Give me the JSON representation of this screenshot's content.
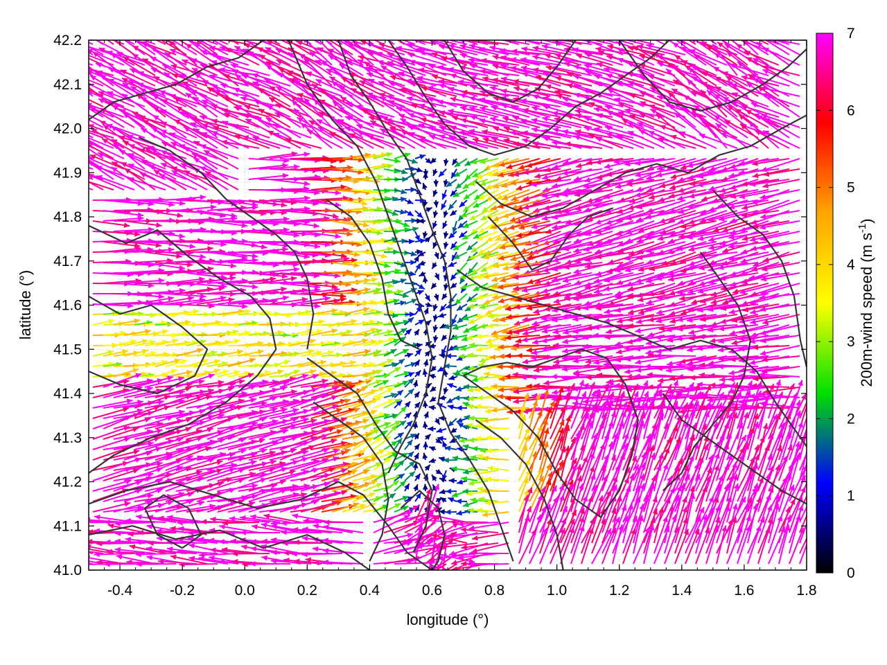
{
  "chart_data": {
    "type": "vector-field",
    "xlabel": "longitude (°)",
    "ylabel": "latitude (°)",
    "xlim": [
      -0.5,
      1.8
    ],
    "ylim": [
      41.0,
      42.2
    ],
    "x_ticks": [
      -0.4,
      -0.2,
      0.0,
      0.2,
      0.4,
      0.6,
      0.8,
      1.0,
      1.2,
      1.4,
      1.6,
      1.8
    ],
    "x_tick_labels": [
      "-0.4",
      "-0.2",
      "0.0",
      "0.2",
      "0.4",
      "0.6",
      "0.8",
      "1.0",
      "1.2",
      "1.4",
      "1.6",
      "1.8"
    ],
    "y_ticks": [
      41.0,
      41.1,
      41.2,
      41.3,
      41.4,
      41.5,
      41.6,
      41.7,
      41.8,
      41.9,
      42.0,
      42.1,
      42.2
    ],
    "y_tick_labels": [
      "41.0",
      "41.1",
      "41.2",
      "41.3",
      "41.4",
      "41.5",
      "41.6",
      "41.7",
      "41.8",
      "41.9",
      "42.0",
      "42.1",
      "42.2"
    ],
    "grid": "dotted",
    "colorbar": {
      "label": "200m-wind speed (m s",
      "label_superscript": "-1",
      "label_close": ")",
      "range": [
        0,
        7
      ],
      "ticks": [
        0,
        1,
        2,
        3,
        4,
        5,
        6,
        7
      ],
      "tick_labels": [
        "0",
        "1",
        "2",
        "3",
        "4",
        "5",
        "6",
        "7"
      ],
      "colormap": [
        "#000000",
        "#0000ff",
        "#00e000",
        "#ffff00",
        "#ffa500",
        "#ff0000",
        "#ff00ff"
      ]
    },
    "contours": [
      {
        "name": "",
        "points": [
          [
            -0.5,
            41.78
          ],
          [
            -0.38,
            41.74
          ],
          [
            -0.28,
            41.77
          ],
          [
            -0.18,
            41.71
          ],
          [
            -0.08,
            41.66
          ],
          [
            0.02,
            41.62
          ],
          [
            0.08,
            41.57
          ],
          [
            0.1,
            41.5
          ],
          [
            0.04,
            41.44
          ],
          [
            -0.06,
            41.38
          ],
          [
            -0.18,
            41.33
          ],
          [
            -0.3,
            41.3
          ],
          [
            -0.42,
            41.26
          ],
          [
            -0.5,
            41.22
          ]
        ]
      },
      {
        "name": "",
        "points": [
          [
            -0.5,
            41.62
          ],
          [
            -0.4,
            41.58
          ],
          [
            -0.3,
            41.6
          ],
          [
            -0.2,
            41.55
          ],
          [
            -0.12,
            41.5
          ],
          [
            -0.16,
            41.44
          ],
          [
            -0.28,
            41.4
          ],
          [
            -0.4,
            41.42
          ],
          [
            -0.5,
            41.45
          ]
        ]
      },
      {
        "name": "",
        "points": [
          [
            -0.5,
            41.15
          ],
          [
            -0.38,
            41.18
          ],
          [
            -0.24,
            41.2
          ],
          [
            -0.1,
            41.17
          ],
          [
            0.04,
            41.14
          ],
          [
            0.18,
            41.16
          ],
          [
            0.3,
            41.2
          ],
          [
            0.38,
            41.17
          ],
          [
            0.46,
            41.1
          ],
          [
            0.52,
            41.04
          ],
          [
            0.6,
            41.0
          ]
        ]
      },
      {
        "name": "",
        "points": [
          [
            -0.5,
            41.08
          ],
          [
            -0.36,
            41.1
          ],
          [
            -0.22,
            41.07
          ],
          [
            -0.08,
            41.09
          ],
          [
            0.06,
            41.05
          ],
          [
            0.2,
            41.08
          ],
          [
            0.32,
            41.04
          ],
          [
            0.4,
            41.0
          ]
        ]
      },
      {
        "name": "",
        "points": [
          [
            0.14,
            42.2
          ],
          [
            0.2,
            42.1
          ],
          [
            0.28,
            42.02
          ],
          [
            0.36,
            41.96
          ],
          [
            0.42,
            41.88
          ],
          [
            0.46,
            41.8
          ],
          [
            0.5,
            41.72
          ],
          [
            0.54,
            41.64
          ],
          [
            0.58,
            41.56
          ],
          [
            0.6,
            41.48
          ],
          [
            0.58,
            41.4
          ],
          [
            0.54,
            41.33
          ],
          [
            0.5,
            41.28
          ],
          [
            0.46,
            41.22
          ]
        ]
      },
      {
        "name": "",
        "points": [
          [
            0.3,
            42.2
          ],
          [
            0.34,
            42.12
          ],
          [
            0.4,
            42.06
          ],
          [
            0.46,
            41.99
          ],
          [
            0.52,
            41.93
          ],
          [
            0.56,
            41.85
          ],
          [
            0.6,
            41.77
          ],
          [
            0.64,
            41.7
          ],
          [
            0.66,
            41.62
          ],
          [
            0.66,
            41.54
          ],
          [
            0.64,
            41.46
          ],
          [
            0.62,
            41.38
          ],
          [
            0.66,
            41.31
          ],
          [
            0.72,
            41.25
          ],
          [
            0.78,
            41.18
          ],
          [
            0.82,
            41.1
          ],
          [
            0.86,
            41.02
          ]
        ]
      },
      {
        "name": "",
        "points": [
          [
            0.46,
            42.2
          ],
          [
            0.52,
            42.14
          ],
          [
            0.58,
            42.07
          ],
          [
            0.64,
            42.01
          ],
          [
            0.72,
            41.96
          ],
          [
            0.8,
            41.94
          ],
          [
            0.9,
            41.96
          ],
          [
            0.98,
            42.0
          ],
          [
            1.06,
            42.05
          ],
          [
            1.14,
            42.08
          ],
          [
            1.22,
            42.12
          ],
          [
            1.3,
            42.16
          ],
          [
            1.36,
            42.2
          ]
        ]
      },
      {
        "name": "",
        "points": [
          [
            0.64,
            42.2
          ],
          [
            0.7,
            42.13
          ],
          [
            0.78,
            42.08
          ],
          [
            0.86,
            42.06
          ],
          [
            0.94,
            42.09
          ],
          [
            1.0,
            42.14
          ],
          [
            1.06,
            42.2
          ]
        ]
      },
      {
        "name": "",
        "points": [
          [
            0.74,
            41.88
          ],
          [
            0.82,
            41.83
          ],
          [
            0.92,
            41.8
          ],
          [
            1.02,
            41.82
          ],
          [
            1.12,
            41.86
          ],
          [
            1.22,
            41.9
          ],
          [
            1.32,
            41.92
          ],
          [
            1.42,
            41.9
          ],
          [
            1.52,
            41.94
          ],
          [
            1.62,
            41.96
          ],
          [
            1.72,
            42.0
          ],
          [
            1.8,
            42.03
          ]
        ]
      },
      {
        "name": "",
        "points": [
          [
            0.68,
            41.68
          ],
          [
            0.76,
            41.64
          ],
          [
            0.86,
            41.62
          ],
          [
            0.96,
            41.6
          ],
          [
            1.06,
            41.58
          ],
          [
            1.16,
            41.56
          ],
          [
            1.26,
            41.53
          ],
          [
            1.36,
            41.5
          ],
          [
            1.46,
            41.52
          ],
          [
            1.56,
            41.5
          ],
          [
            1.64,
            41.45
          ],
          [
            1.7,
            41.38
          ],
          [
            1.76,
            41.32
          ],
          [
            1.8,
            41.28
          ]
        ]
      },
      {
        "name": "",
        "points": [
          [
            1.46,
            41.72
          ],
          [
            1.52,
            41.66
          ],
          [
            1.58,
            41.6
          ],
          [
            1.62,
            41.52
          ],
          [
            1.6,
            41.44
          ],
          [
            1.56,
            41.38
          ],
          [
            1.5,
            41.33
          ],
          [
            1.44,
            41.28
          ],
          [
            1.4,
            41.22
          ],
          [
            1.34,
            41.18
          ]
        ]
      },
      {
        "name": "",
        "points": [
          [
            0.7,
            41.44
          ],
          [
            0.78,
            41.4
          ],
          [
            0.86,
            41.36
          ],
          [
            0.94,
            41.3
          ],
          [
            1.0,
            41.22
          ],
          [
            1.06,
            41.16
          ],
          [
            1.14,
            41.12
          ],
          [
            1.2,
            41.18
          ],
          [
            1.24,
            41.26
          ],
          [
            1.26,
            41.34
          ],
          [
            1.22,
            41.42
          ],
          [
            1.16,
            41.48
          ],
          [
            1.08,
            41.5
          ],
          [
            1.0,
            41.48
          ],
          [
            0.92,
            41.46
          ],
          [
            0.84,
            41.47
          ],
          [
            0.76,
            41.46
          ],
          [
            0.7,
            41.44
          ]
        ]
      },
      {
        "name": "",
        "points": [
          [
            0.74,
            41.34
          ],
          [
            0.82,
            41.3
          ],
          [
            0.9,
            41.24
          ],
          [
            0.96,
            41.16
          ],
          [
            1.0,
            41.08
          ],
          [
            1.02,
            41.0
          ]
        ]
      },
      {
        "name": "",
        "points": [
          [
            0.22,
            41.38
          ],
          [
            0.3,
            41.34
          ],
          [
            0.38,
            41.3
          ],
          [
            0.44,
            41.24
          ],
          [
            0.46,
            41.16
          ],
          [
            0.44,
            41.08
          ],
          [
            0.4,
            41.02
          ]
        ]
      },
      {
        "name": "",
        "points": [
          [
            0.2,
            41.48
          ],
          [
            0.28,
            41.44
          ],
          [
            0.36,
            41.4
          ],
          [
            0.42,
            41.33
          ],
          [
            0.48,
            41.27
          ],
          [
            0.56,
            41.24
          ],
          [
            0.6,
            41.18
          ],
          [
            0.58,
            41.1
          ],
          [
            0.54,
            41.04
          ]
        ]
      },
      {
        "name": "",
        "points": [
          [
            -0.2,
            41.05
          ],
          [
            -0.28,
            41.08
          ],
          [
            -0.32,
            41.14
          ],
          [
            -0.26,
            41.17
          ],
          [
            -0.18,
            41.14
          ],
          [
            -0.14,
            41.08
          ],
          [
            -0.2,
            41.05
          ]
        ]
      },
      {
        "name": "",
        "points": [
          [
            -0.34,
            41.98
          ],
          [
            -0.24,
            41.95
          ],
          [
            -0.14,
            41.9
          ],
          [
            -0.06,
            41.84
          ],
          [
            0.02,
            41.8
          ],
          [
            0.1,
            41.76
          ],
          [
            0.16,
            41.72
          ],
          [
            0.2,
            41.66
          ],
          [
            0.22,
            41.58
          ],
          [
            0.2,
            41.5
          ]
        ]
      },
      {
        "name": "",
        "points": [
          [
            -0.5,
            42.02
          ],
          [
            -0.42,
            42.06
          ],
          [
            -0.32,
            42.08
          ],
          [
            -0.22,
            42.1
          ],
          [
            -0.12,
            42.14
          ],
          [
            -0.02,
            42.16
          ],
          [
            0.06,
            42.2
          ]
        ]
      },
      {
        "name": "",
        "points": [
          [
            1.2,
            42.2
          ],
          [
            1.28,
            42.12
          ],
          [
            1.36,
            42.06
          ],
          [
            1.46,
            42.04
          ],
          [
            1.56,
            42.06
          ],
          [
            1.66,
            42.1
          ],
          [
            1.74,
            42.14
          ],
          [
            1.8,
            42.18
          ]
        ]
      },
      {
        "name": "",
        "points": [
          [
            1.5,
            41.86
          ],
          [
            1.58,
            41.8
          ],
          [
            1.66,
            41.76
          ],
          [
            1.72,
            41.7
          ],
          [
            1.76,
            41.62
          ],
          [
            1.78,
            41.52
          ],
          [
            1.8,
            41.46
          ]
        ]
      },
      {
        "name": "",
        "points": [
          [
            1.34,
            41.4
          ],
          [
            1.4,
            41.34
          ],
          [
            1.48,
            41.3
          ],
          [
            1.56,
            41.26
          ],
          [
            1.64,
            41.22
          ],
          [
            1.72,
            41.18
          ],
          [
            1.8,
            41.15
          ]
        ]
      },
      {
        "name": "",
        "points": [
          [
            0.78,
            41.8
          ],
          [
            0.86,
            41.74
          ],
          [
            0.92,
            41.68
          ],
          [
            0.98,
            41.7
          ],
          [
            1.04,
            41.76
          ],
          [
            1.1,
            41.8
          ],
          [
            1.18,
            41.82
          ]
        ]
      },
      {
        "name": "",
        "points": [
          [
            0.26,
            41.84
          ],
          [
            0.34,
            41.8
          ],
          [
            0.4,
            41.74
          ],
          [
            0.44,
            41.66
          ],
          [
            0.46,
            41.58
          ],
          [
            0.5,
            41.52
          ],
          [
            0.56,
            41.5
          ]
        ]
      },
      {
        "name": "",
        "points": [
          [
            0.5,
            41.14
          ],
          [
            0.56,
            41.18
          ],
          [
            0.62,
            41.14
          ],
          [
            0.64,
            41.08
          ],
          [
            0.62,
            41.02
          ],
          [
            0.6,
            41.0
          ]
        ]
      }
    ],
    "vector_field": {
      "note": "",
      "points": []
    }
  }
}
